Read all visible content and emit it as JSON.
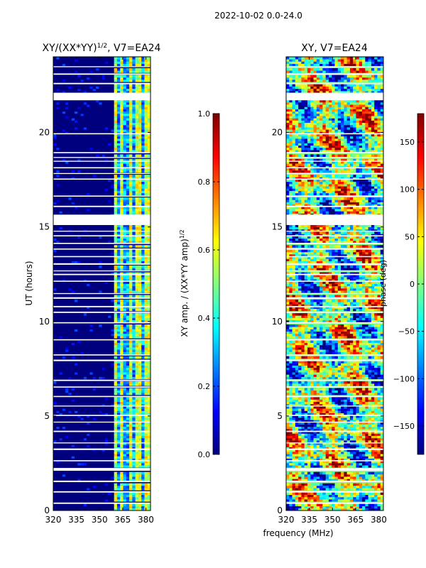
{
  "suptitle": "2022-10-02 0.0-24.0",
  "shared_xlabel": "frequency (MHz)",
  "colormap": [
    "#00007f",
    "#0000ff",
    "#007fff",
    "#00ffff",
    "#7fff7f",
    "#ffff00",
    "#ff7f00",
    "#ff0000",
    "#7f0000"
  ],
  "gap_color": "#ffffff",
  "chart_data": [
    {
      "type": "heatmap",
      "title_main": "XY/(XX*YY)",
      "title_sup": "1/2",
      "title_tail": ", V7=EA24",
      "ylabel": "UT (hours)",
      "xlim": [
        320,
        383
      ],
      "ylim": [
        0,
        24
      ],
      "xticks": [
        "320",
        "335",
        "350",
        "365",
        "380"
      ],
      "xtick_values": [
        320,
        335,
        350,
        365,
        380
      ],
      "yticks": [
        "0",
        "5",
        "10",
        "15",
        "20"
      ],
      "ytick_values": [
        0,
        5,
        10,
        15,
        20
      ],
      "active_band_mhz": [
        359.5,
        383
      ],
      "colorbar": {
        "label_main": "XY amp. / (XX*YY amp)",
        "label_sup": "1/2",
        "range": [
          0.0,
          1.0
        ],
        "ticks": [
          "0.0",
          "0.2",
          "0.4",
          "0.6",
          "0.8",
          "1.0"
        ],
        "tick_values": [
          0.0,
          0.2,
          0.4,
          0.6,
          0.8,
          1.0
        ]
      }
    },
    {
      "type": "heatmap",
      "title": "XY, V7=EA24",
      "xlim": [
        320,
        383
      ],
      "ylim": [
        0,
        24
      ],
      "xticks": [
        "320",
        "335",
        "350",
        "365",
        "380"
      ],
      "xtick_values": [
        320,
        335,
        350,
        365,
        380
      ],
      "yticks": [
        "0",
        "5",
        "10",
        "15",
        "20"
      ],
      "ytick_values": [
        0,
        5,
        10,
        15,
        20
      ],
      "colorbar": {
        "label": "phase (deg)",
        "range": [
          -180,
          180
        ],
        "ticks": [
          "−150",
          "−100",
          "−50",
          "0",
          "50",
          "100",
          "150"
        ],
        "tick_values": [
          -150,
          -100,
          -50,
          0,
          50,
          100,
          150
        ]
      }
    }
  ],
  "data_gaps_ut_hours": [
    [
      0.35,
      0.42
    ],
    [
      0.95,
      1.02
    ],
    [
      1.5,
      1.58
    ],
    [
      2.1,
      2.25
    ],
    [
      2.6,
      2.66
    ],
    [
      3.2,
      3.28
    ],
    [
      3.55,
      3.6
    ],
    [
      4.15,
      4.22
    ],
    [
      4.65,
      4.7
    ],
    [
      5.0,
      5.06
    ],
    [
      5.5,
      5.55
    ],
    [
      6.0,
      6.06
    ],
    [
      6.5,
      6.56
    ],
    [
      6.85,
      6.92
    ],
    [
      7.9,
      7.98
    ],
    [
      8.2,
      8.26
    ],
    [
      9.0,
      9.06
    ],
    [
      9.9,
      9.96
    ],
    [
      10.45,
      10.52
    ],
    [
      10.75,
      10.82
    ],
    [
      11.2,
      11.28
    ],
    [
      11.45,
      11.5
    ],
    [
      12.1,
      12.16
    ],
    [
      12.45,
      12.52
    ],
    [
      12.65,
      12.7
    ],
    [
      13.0,
      13.08
    ],
    [
      13.4,
      13.46
    ],
    [
      13.8,
      13.86
    ],
    [
      14.1,
      14.16
    ],
    [
      14.5,
      14.56
    ],
    [
      14.75,
      14.8
    ],
    [
      15.1,
      15.65
    ],
    [
      16.05,
      16.12
    ],
    [
      16.6,
      16.66
    ],
    [
      17.5,
      17.56
    ],
    [
      17.8,
      17.85
    ],
    [
      18.1,
      18.16
    ],
    [
      18.45,
      18.5
    ],
    [
      18.65,
      18.7
    ],
    [
      18.9,
      18.96
    ],
    [
      19.9,
      19.96
    ],
    [
      21.7,
      22.1
    ],
    [
      22.55,
      22.62
    ],
    [
      23.05,
      23.12
    ],
    [
      23.45,
      23.5
    ]
  ]
}
